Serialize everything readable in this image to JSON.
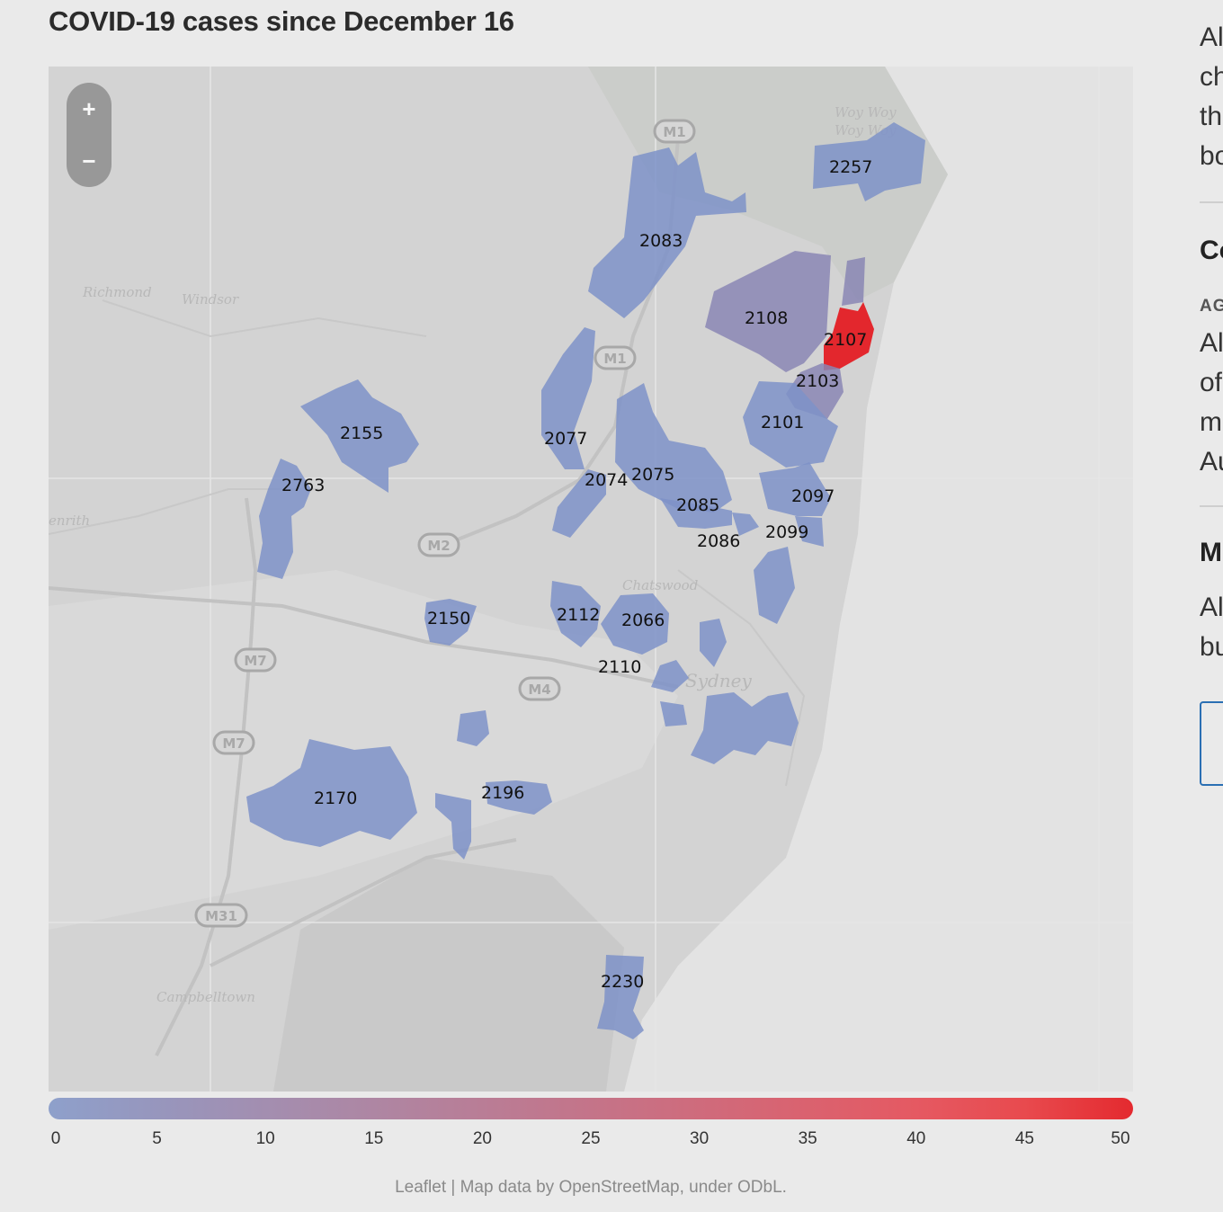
{
  "title": "COVID-19 cases since December 16",
  "zoom": {
    "in_label": "+",
    "out_label": "−"
  },
  "legend": {
    "ticks": [
      "0",
      "5",
      "10",
      "15",
      "20",
      "25",
      "30",
      "35",
      "40",
      "45",
      "50"
    ],
    "colors": [
      "#8ea0cb",
      "#9796bd",
      "#a38eb0",
      "#ae86a3",
      "#b97d96",
      "#c47489",
      "#cf6b7c",
      "#da626f",
      "#e55962",
      "#e84a4e",
      "#e42a2f"
    ]
  },
  "attribution": "Leaflet | Map data by OpenStreetMap, under ODbL.",
  "places": {
    "richmond": "Richmond",
    "windsor": "Windsor",
    "woy_woy": "Woy Woy",
    "chatswood": "Chatswood",
    "sydney": "Sydney",
    "campbelltown": "Campbelltown",
    "penrith": "enrith"
  },
  "roads": {
    "m1": "M1",
    "m2": "M2",
    "m4": "M4",
    "m7": "M7",
    "m31": "M31"
  },
  "postcodes": {
    "p2257": "2257",
    "p2083": "2083",
    "p2108": "2108",
    "p2107": "2107",
    "p2103": "2103",
    "p2101": "2101",
    "p2155": "2155",
    "p2077": "2077",
    "p2074": "2074",
    "p2075": "2075",
    "p2763": "2763",
    "p2085": "2085",
    "p2097": "2097",
    "p2086": "2086",
    "p2099": "2099",
    "p2150": "2150",
    "p2112": "2112",
    "p2066": "2066",
    "p2110": "2110",
    "p2170": "2170",
    "p2196": "2196",
    "p2230": "2230"
  },
  "region_colors": {
    "low": "#7e92c8",
    "mid": "#8a86b4",
    "high": "#e41e24"
  },
  "sidebar": {
    "line1": "Al",
    "line2": "ch",
    "line3": "th",
    "line4": "bo",
    "heading1": "Co",
    "small1": "AG",
    "line5": "Al",
    "line6": "of",
    "line7": "m",
    "line8": "Au",
    "heading2": "M",
    "line9": "Al",
    "line10": "bu"
  }
}
